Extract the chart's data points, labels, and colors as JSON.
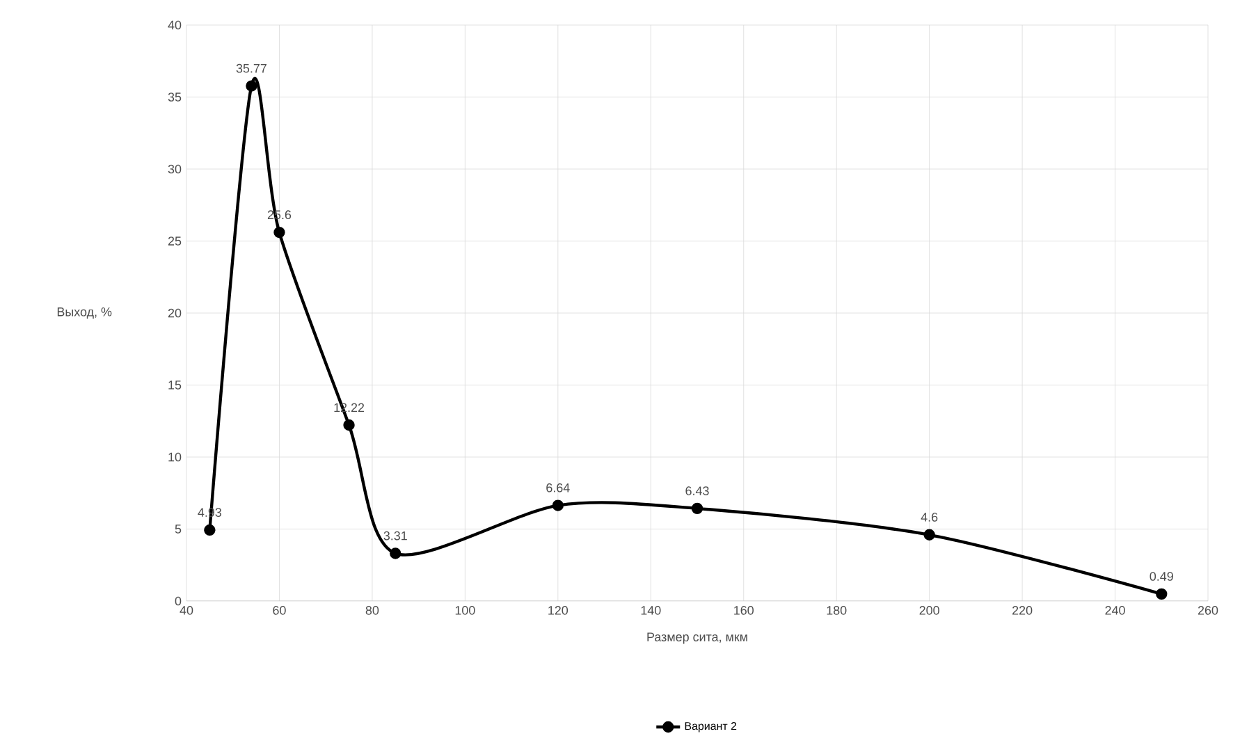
{
  "chart_data": {
    "type": "line",
    "xlabel": "Размер сита, мкм",
    "ylabel": "Выход, %",
    "x": [
      45,
      54,
      60,
      75,
      85,
      120,
      150,
      200,
      250
    ],
    "series": [
      {
        "name": "Вариант 2",
        "color": "#000000",
        "values": [
          4.93,
          35.77,
          25.6,
          12.22,
          3.31,
          6.64,
          6.43,
          4.6,
          0.49
        ]
      }
    ],
    "xlim": [
      40,
      260
    ],
    "xticks": [
      40,
      60,
      80,
      100,
      120,
      140,
      160,
      180,
      200,
      220,
      240,
      260
    ],
    "ylim": [
      0,
      40
    ],
    "yticks": [
      0,
      5,
      10,
      15,
      20,
      25,
      30,
      35,
      40
    ],
    "grid": true,
    "legend": "bottom",
    "marker": "circle",
    "line_style": "solid",
    "data_labels": true
  }
}
